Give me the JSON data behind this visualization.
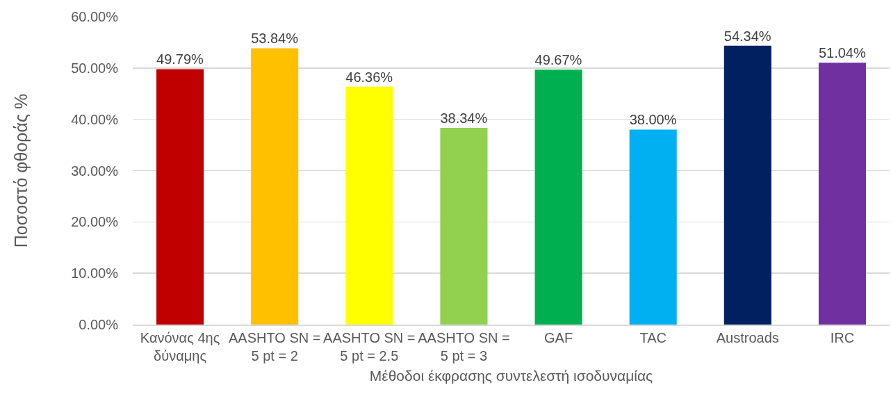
{
  "chart_data": {
    "type": "bar",
    "xlabel": "Μέθοδοι έκφρασης συντελεστή ισοδυναμίας",
    "ylabel": "Ποσοστό φθοράς %",
    "categories": [
      "Κανόνας 4ης δύναμης",
      "AASHTO SN = 5 pt = 2",
      "AASHTO SN = 5 pt = 2.5",
      "AASHTO SN = 5 pt = 3",
      "GAF",
      "TAC",
      "Austroads",
      "IRC"
    ],
    "values": [
      49.79,
      53.84,
      46.36,
      38.34,
      49.67,
      38.0,
      54.34,
      51.04
    ],
    "colors": [
      "#c00000",
      "#ffc000",
      "#ffff00",
      "#92d050",
      "#00b050",
      "#00b0f0",
      "#002060",
      "#7030a0"
    ],
    "value_labels": [
      "49.79%",
      "53.84%",
      "46.36%",
      "38.34%",
      "49.67%",
      "38.00%",
      "54.34%",
      "51.04%"
    ],
    "ylim": [
      0,
      60
    ],
    "yticks": [
      {
        "value": 0,
        "label": "0.00%"
      },
      {
        "value": 10,
        "label": "10.00%"
      },
      {
        "value": 20,
        "label": "20.00%"
      },
      {
        "value": 30,
        "label": "30.00%"
      },
      {
        "value": 40,
        "label": "40.00%"
      },
      {
        "value": 50,
        "label": "50.00%"
      },
      {
        "value": 60,
        "label": "60.00%"
      }
    ],
    "grid": "y"
  }
}
